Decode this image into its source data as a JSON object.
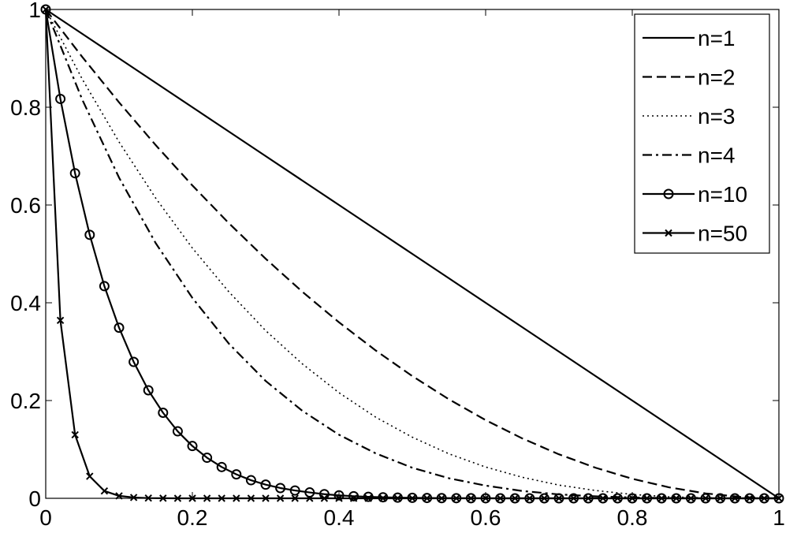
{
  "chart_data": {
    "type": "line",
    "title": "",
    "xlabel": "",
    "ylabel": "",
    "xlim": [
      0,
      1
    ],
    "ylim": [
      0,
      1
    ],
    "xticks": [
      "0",
      "0.2",
      "0.4",
      "0.6",
      "0.8",
      "1"
    ],
    "yticks": [
      "0",
      "0.2",
      "0.4",
      "0.6",
      "0.8",
      "1"
    ],
    "grid": false,
    "legend_position": "top-right",
    "series": [
      {
        "name": "n=1",
        "line_style": "solid",
        "marker": "none",
        "color": "#000000",
        "x": [
          0,
          0.05,
          0.1,
          0.15,
          0.2,
          0.25,
          0.3,
          0.35,
          0.4,
          0.45,
          0.5,
          0.55,
          0.6,
          0.65,
          0.7,
          0.75,
          0.8,
          0.85,
          0.9,
          0.95,
          1
        ],
        "y": [
          1,
          0.95,
          0.9,
          0.85,
          0.8,
          0.75,
          0.7,
          0.65,
          0.6,
          0.55,
          0.5,
          0.45,
          0.4,
          0.35,
          0.3,
          0.25,
          0.2,
          0.15,
          0.1,
          0.05,
          0
        ]
      },
      {
        "name": "n=2",
        "line_style": "dashed",
        "marker": "none",
        "color": "#000000",
        "x": [
          0,
          0.05,
          0.1,
          0.15,
          0.2,
          0.25,
          0.3,
          0.35,
          0.4,
          0.45,
          0.5,
          0.55,
          0.6,
          0.65,
          0.7,
          0.75,
          0.8,
          0.85,
          0.9,
          0.95,
          1
        ],
        "y": [
          1,
          0.9025,
          0.81,
          0.7225,
          0.64,
          0.5625,
          0.49,
          0.4225,
          0.36,
          0.3025,
          0.25,
          0.2025,
          0.16,
          0.1225,
          0.09,
          0.0625,
          0.04,
          0.0225,
          0.01,
          0.0025,
          0
        ]
      },
      {
        "name": "n=3",
        "line_style": "dotted",
        "marker": "none",
        "color": "#000000",
        "x": [
          0,
          0.05,
          0.1,
          0.15,
          0.2,
          0.25,
          0.3,
          0.35,
          0.4,
          0.45,
          0.5,
          0.55,
          0.6,
          0.65,
          0.7,
          0.75,
          0.8,
          0.85,
          0.9,
          0.95,
          1
        ],
        "y": [
          1,
          0.857,
          0.729,
          0.614,
          0.512,
          0.422,
          0.343,
          0.275,
          0.216,
          0.166,
          0.125,
          0.091,
          0.064,
          0.043,
          0.027,
          0.016,
          0.008,
          0.003,
          0.001,
          0.0001,
          0
        ]
      },
      {
        "name": "n=4",
        "line_style": "dashdot",
        "marker": "none",
        "color": "#000000",
        "x": [
          0,
          0.05,
          0.1,
          0.15,
          0.2,
          0.25,
          0.3,
          0.35,
          0.4,
          0.45,
          0.5,
          0.55,
          0.6,
          0.65,
          0.7,
          0.75,
          0.8,
          0.85,
          0.9,
          0.95,
          1
        ],
        "y": [
          1,
          0.815,
          0.656,
          0.522,
          0.41,
          0.316,
          0.24,
          0.179,
          0.13,
          0.092,
          0.0625,
          0.041,
          0.026,
          0.015,
          0.008,
          0.004,
          0.0016,
          0.0005,
          0.0001,
          0,
          0
        ]
      },
      {
        "name": "n=10",
        "line_style": "solid",
        "marker": "circle",
        "color": "#000000",
        "x": [
          0,
          0.02,
          0.04,
          0.06,
          0.08,
          0.1,
          0.12,
          0.14,
          0.16,
          0.18,
          0.2,
          0.22,
          0.24,
          0.26,
          0.28,
          0.3,
          0.32,
          0.34,
          0.36,
          0.38,
          0.4,
          0.42,
          0.44,
          0.46,
          0.48,
          0.5,
          0.52,
          0.54,
          0.56,
          0.58,
          0.6,
          0.62,
          0.64,
          0.66,
          0.68,
          0.7,
          0.72,
          0.74,
          0.76,
          0.78,
          0.8,
          0.82,
          0.84,
          0.86,
          0.88,
          0.9,
          0.92,
          0.94,
          0.96,
          0.98,
          1
        ],
        "y": [
          1,
          0.817,
          0.665,
          0.539,
          0.434,
          0.349,
          0.279,
          0.221,
          0.175,
          0.137,
          0.107,
          0.083,
          0.064,
          0.049,
          0.037,
          0.028,
          0.021,
          0.016,
          0.012,
          0.0085,
          0.006,
          0.0043,
          0.003,
          0.0021,
          0.0014,
          0.001,
          0.0007,
          0.0004,
          0.0003,
          0.0002,
          0.0001,
          0,
          0,
          0,
          0,
          0,
          0,
          0,
          0,
          0,
          0,
          0,
          0,
          0,
          0,
          0,
          0,
          0,
          0,
          0,
          0
        ]
      },
      {
        "name": "n=50",
        "line_style": "solid",
        "marker": "x",
        "color": "#000000",
        "x": [
          0,
          0.02,
          0.04,
          0.06,
          0.08,
          0.1,
          0.12,
          0.14,
          0.16,
          0.18,
          0.2,
          0.22,
          0.24,
          0.26,
          0.28,
          0.3,
          0.32,
          0.34,
          0.36,
          0.38,
          0.4,
          0.42,
          0.44,
          0.46,
          0.48,
          0.5,
          0.52,
          0.54,
          0.56,
          0.58,
          0.6,
          0.62,
          0.64,
          0.66,
          0.68,
          0.7,
          0.72,
          0.74,
          0.76,
          0.78,
          0.8,
          0.82,
          0.84,
          0.86,
          0.88,
          0.9,
          0.92,
          0.94,
          0.96,
          0.98,
          1
        ],
        "y": [
          1,
          0.364,
          0.13,
          0.045,
          0.015,
          0.005,
          0.0017,
          0.0005,
          0.0002,
          0,
          0,
          0,
          0,
          0,
          0,
          0,
          0,
          0,
          0,
          0,
          0,
          0,
          0,
          0,
          0,
          0,
          0,
          0,
          0,
          0,
          0,
          0,
          0,
          0,
          0,
          0,
          0,
          0,
          0,
          0,
          0,
          0,
          0,
          0,
          0,
          0,
          0,
          0,
          0,
          0,
          0
        ]
      }
    ]
  }
}
